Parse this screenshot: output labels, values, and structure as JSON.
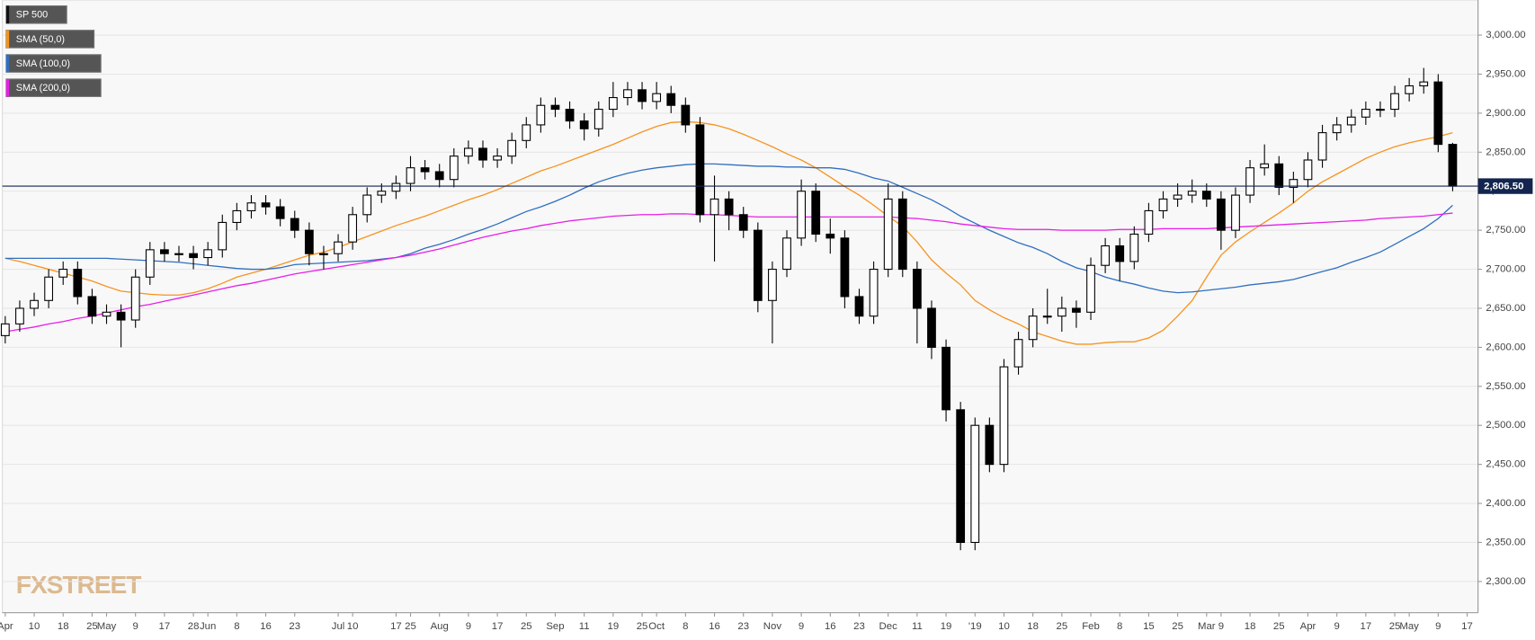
{
  "chart_data": {
    "type": "candlestick",
    "watermark": "FXSTREET",
    "categories": [
      "Apr",
      null,
      "10",
      null,
      "18",
      null,
      "25",
      "May",
      null,
      "9",
      null,
      "17",
      null,
      "28",
      "Jun",
      null,
      "8",
      null,
      "16",
      null,
      "23",
      null,
      null,
      "Jul",
      "10",
      null,
      null,
      "17",
      "25",
      null,
      "Aug",
      null,
      "9",
      null,
      "17",
      null,
      "25",
      null,
      "Sep",
      null,
      "11",
      null,
      "19",
      null,
      "25",
      "Oct",
      null,
      "8",
      null,
      "16",
      null,
      "23",
      null,
      "Nov",
      null,
      "9",
      null,
      "16",
      null,
      "23",
      null,
      "Dec",
      null,
      "11",
      null,
      "19",
      null,
      "'19",
      null,
      "10",
      null,
      "18",
      null,
      "25",
      null,
      "Feb",
      null,
      "8",
      null,
      "15",
      null,
      "25",
      null,
      "Mar",
      "9",
      null,
      "18",
      null,
      "25",
      null,
      "Apr",
      null,
      "9",
      null,
      "17",
      null,
      "25",
      "May",
      null,
      "9",
      null,
      "17"
    ],
    "series": [
      {
        "name": "SP 500",
        "type": "candlestick",
        "color": "#000000",
        "open": [
          2615,
          2630,
          2650,
          2660,
          2690,
          2700,
          2665,
          2640,
          2645,
          2635,
          2690,
          2725,
          2720,
          2720,
          2715,
          2725,
          2760,
          2775,
          2785,
          2780,
          2765,
          2750,
          2720,
          2720,
          2735,
          2770,
          2795,
          2800,
          2810,
          2830,
          2825,
          2815,
          2845,
          2855,
          2840,
          2845,
          2865,
          2885,
          2910,
          2905,
          2890,
          2880,
          2905,
          2920,
          2930,
          2915,
          2925,
          2910,
          2885,
          2770,
          2790,
          2770,
          2750,
          2660,
          2700,
          2740,
          2800,
          2745,
          2740,
          2665,
          2640,
          2700,
          2790,
          2700,
          2650,
          2600,
          2520,
          2350,
          2500,
          2450,
          2575,
          2610,
          2640,
          2640,
          2650,
          2645,
          2705,
          2730,
          2710,
          2745,
          2775,
          2790,
          2795,
          2800,
          2790,
          2750,
          2795,
          2830,
          2835,
          2805,
          2815,
          2840,
          2875,
          2885,
          2895,
          2905,
          2905,
          2925,
          2935,
          2940,
          2860,
          null
        ],
        "high": [
          2640,
          2660,
          2670,
          2700,
          2710,
          2710,
          2675,
          2655,
          2655,
          2700,
          2735,
          2735,
          2730,
          2730,
          2735,
          2770,
          2785,
          2795,
          2795,
          2790,
          2775,
          2760,
          2730,
          2745,
          2780,
          2805,
          2810,
          2820,
          2845,
          2840,
          2835,
          2855,
          2865,
          2865,
          2855,
          2875,
          2895,
          2920,
          2920,
          2915,
          2900,
          2915,
          2940,
          2940,
          2940,
          2940,
          2935,
          2920,
          2895,
          2820,
          2800,
          2780,
          2760,
          2710,
          2750,
          2815,
          2810,
          2765,
          2750,
          2675,
          2710,
          2810,
          2800,
          2710,
          2660,
          2610,
          2530,
          2510,
          2510,
          2585,
          2620,
          2650,
          2675,
          2665,
          2660,
          2715,
          2740,
          2740,
          2755,
          2785,
          2800,
          2810,
          2815,
          2810,
          2800,
          2805,
          2840,
          2860,
          2845,
          2825,
          2850,
          2885,
          2895,
          2905,
          2915,
          2915,
          2935,
          2945,
          2958,
          2950,
          2862,
          null
        ],
        "low": [
          2605,
          2620,
          2640,
          2650,
          2680,
          2655,
          2630,
          2630,
          2600,
          2625,
          2680,
          2710,
          2710,
          2700,
          2705,
          2715,
          2750,
          2765,
          2770,
          2755,
          2740,
          2705,
          2700,
          2710,
          2725,
          2760,
          2785,
          2790,
          2800,
          2815,
          2805,
          2805,
          2835,
          2830,
          2830,
          2835,
          2855,
          2875,
          2895,
          2880,
          2865,
          2870,
          2895,
          2910,
          2905,
          2905,
          2900,
          2875,
          2760,
          2710,
          2750,
          2740,
          2645,
          2605,
          2690,
          2730,
          2735,
          2720,
          2650,
          2630,
          2630,
          2690,
          2690,
          2605,
          2585,
          2505,
          2340,
          2340,
          2440,
          2440,
          2565,
          2600,
          2630,
          2620,
          2625,
          2635,
          2695,
          2685,
          2700,
          2735,
          2765,
          2780,
          2785,
          2780,
          2725,
          2740,
          2785,
          2820,
          2795,
          2785,
          2805,
          2830,
          2865,
          2875,
          2885,
          2895,
          2895,
          2915,
          2925,
          2850,
          2800,
          null
        ],
        "close": [
          2630,
          2650,
          2660,
          2690,
          2700,
          2665,
          2640,
          2645,
          2635,
          2690,
          2725,
          2720,
          2720,
          2715,
          2725,
          2760,
          2775,
          2785,
          2780,
          2765,
          2750,
          2720,
          2720,
          2735,
          2770,
          2795,
          2800,
          2810,
          2830,
          2825,
          2815,
          2845,
          2855,
          2840,
          2845,
          2865,
          2885,
          2910,
          2905,
          2890,
          2880,
          2905,
          2920,
          2930,
          2915,
          2925,
          2910,
          2885,
          2770,
          2790,
          2770,
          2750,
          2660,
          2700,
          2740,
          2800,
          2745,
          2740,
          2665,
          2640,
          2700,
          2790,
          2700,
          2650,
          2600,
          2520,
          2350,
          2500,
          2450,
          2575,
          2610,
          2640,
          2640,
          2650,
          2645,
          2705,
          2730,
          2710,
          2745,
          2775,
          2790,
          2795,
          2800,
          2790,
          2750,
          2795,
          2830,
          2835,
          2805,
          2815,
          2840,
          2875,
          2885,
          2895,
          2905,
          2905,
          2925,
          2935,
          2940,
          2860,
          2806.5,
          null
        ]
      },
      {
        "name": "SMA (50,0)",
        "type": "line",
        "color": "#f7931e",
        "values": [
          2714,
          2710,
          2705,
          2700,
          2695,
          2690,
          2685,
          2678,
          2672,
          2670,
          2668,
          2667,
          2667,
          2670,
          2675,
          2682,
          2690,
          2695,
          2700,
          2706,
          2712,
          2718,
          2722,
          2728,
          2735,
          2742,
          2749,
          2756,
          2762,
          2768,
          2775,
          2782,
          2789,
          2795,
          2802,
          2810,
          2818,
          2826,
          2832,
          2839,
          2846,
          2853,
          2860,
          2868,
          2876,
          2883,
          2888,
          2889,
          2888,
          2885,
          2880,
          2873,
          2865,
          2857,
          2848,
          2840,
          2830,
          2818,
          2806,
          2795,
          2782,
          2768,
          2755,
          2735,
          2712,
          2695,
          2680,
          2660,
          2648,
          2638,
          2630,
          2620,
          2614,
          2608,
          2604,
          2604,
          2606,
          2607,
          2607,
          2612,
          2622,
          2640,
          2660,
          2690,
          2718,
          2735,
          2748,
          2760,
          2772,
          2785,
          2800,
          2812,
          2822,
          2832,
          2842,
          2850,
          2857,
          2862,
          2866,
          2870,
          2875,
          null
        ]
      },
      {
        "name": "SMA (100,0)",
        "type": "line",
        "color": "#2f6fc0",
        "values": [
          2714,
          2714,
          2714,
          2714,
          2714,
          2714,
          2714,
          2714,
          2713,
          2712,
          2711,
          2710,
          2709,
          2707,
          2705,
          2703,
          2701,
          2700,
          2700,
          2702,
          2706,
          2707,
          2708,
          2709,
          2710,
          2711,
          2713,
          2715,
          2720,
          2727,
          2732,
          2738,
          2745,
          2751,
          2758,
          2766,
          2774,
          2780,
          2787,
          2795,
          2804,
          2812,
          2818,
          2823,
          2827,
          2830,
          2832,
          2834,
          2835,
          2835,
          2834,
          2833,
          2832,
          2832,
          2831,
          2831,
          2830,
          2830,
          2828,
          2823,
          2817,
          2813,
          2805,
          2797,
          2789,
          2779,
          2768,
          2759,
          2750,
          2742,
          2734,
          2728,
          2720,
          2710,
          2702,
          2697,
          2690,
          2685,
          2681,
          2676,
          2672,
          2670,
          2671,
          2673,
          2675,
          2677,
          2680,
          2682,
          2684,
          2687,
          2692,
          2697,
          2702,
          2709,
          2715,
          2722,
          2732,
          2742,
          2752,
          2765,
          2782,
          null
        ]
      },
      {
        "name": "SMA (200,0)",
        "type": "line",
        "color": "#e81ee8",
        "values": [
          2620,
          2623,
          2626,
          2630,
          2633,
          2637,
          2640,
          2644,
          2648,
          2652,
          2655,
          2659,
          2663,
          2667,
          2671,
          2675,
          2679,
          2682,
          2686,
          2690,
          2694,
          2697,
          2700,
          2703,
          2706,
          2709,
          2712,
          2715,
          2718,
          2722,
          2726,
          2731,
          2736,
          2741,
          2745,
          2749,
          2752,
          2756,
          2759,
          2762,
          2764,
          2766,
          2768,
          2769,
          2770,
          2770,
          2771,
          2771,
          2770,
          2770,
          2769,
          2768,
          2767,
          2767,
          2767,
          2767,
          2767,
          2767,
          2767,
          2767,
          2767,
          2767,
          2766,
          2765,
          2763,
          2761,
          2758,
          2756,
          2754,
          2752,
          2751,
          2751,
          2751,
          2750,
          2750,
          2750,
          2750,
          2751,
          2751,
          2751,
          2752,
          2752,
          2752,
          2752,
          2753,
          2754,
          2755,
          2756,
          2757,
          2758,
          2759,
          2760,
          2761,
          2762,
          2763,
          2765,
          2766,
          2767,
          2768,
          2770,
          2772,
          null
        ]
      }
    ],
    "last_price": {
      "value": 2806.5,
      "label": "2,806.50",
      "color": "#13254f"
    },
    "ylim": [
      2260,
      3045
    ],
    "yticks": [
      {
        "value": 2300,
        "label": "2,300.00"
      },
      {
        "value": 2350,
        "label": "2,350.00"
      },
      {
        "value": 2400,
        "label": "2,400.00"
      },
      {
        "value": 2450,
        "label": "2,450.00"
      },
      {
        "value": 2500,
        "label": "2,500.00"
      },
      {
        "value": 2550,
        "label": "2,550.00"
      },
      {
        "value": 2600,
        "label": "2,600.00"
      },
      {
        "value": 2650,
        "label": "2,650.00"
      },
      {
        "value": 2700,
        "label": "2,700.00"
      },
      {
        "value": 2750,
        "label": "2,750.00"
      },
      {
        "value": 2800,
        "label": "2,800.00"
      },
      {
        "value": 2850,
        "label": "2,850.00"
      },
      {
        "value": 2900,
        "label": "2,900.00"
      },
      {
        "value": 2950,
        "label": "2,950.00"
      },
      {
        "value": 3000,
        "label": "3,000.00"
      }
    ],
    "grid": true,
    "legend": "top-left"
  }
}
